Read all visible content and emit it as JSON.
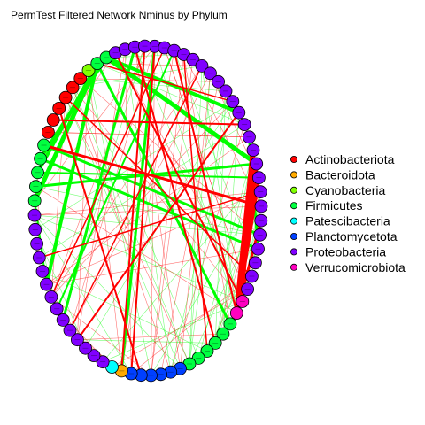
{
  "chart_data": {
    "type": "network",
    "title": "PermTest Filtered Network Nminus by Phylum",
    "layout": "circle",
    "node_count": 72,
    "legend_position": "right",
    "legend": [
      {
        "name": "Actinobacteriota",
        "color": "#ff0000"
      },
      {
        "name": "Bacteroidota",
        "color": "#ffaa00"
      },
      {
        "name": "Cyanobacteria",
        "color": "#80ff00"
      },
      {
        "name": "Firmicutes",
        "color": "#00ff40"
      },
      {
        "name": "Patescibacteria",
        "color": "#00ffff"
      },
      {
        "name": "Planctomycetota",
        "color": "#0040ff"
      },
      {
        "name": "Proteobacteria",
        "color": "#8000ff"
      },
      {
        "name": "Verrucomicrobiota",
        "color": "#ff00bf"
      }
    ],
    "nodes": [
      {
        "phylum": "Proteobacteria"
      },
      {
        "phylum": "Proteobacteria"
      },
      {
        "phylum": "Proteobacteria"
      },
      {
        "phylum": "Proteobacteria"
      },
      {
        "phylum": "Proteobacteria"
      },
      {
        "phylum": "Proteobacteria"
      },
      {
        "phylum": "Proteobacteria"
      },
      {
        "phylum": "Proteobacteria"
      },
      {
        "phylum": "Proteobacteria"
      },
      {
        "phylum": "Proteobacteria"
      },
      {
        "phylum": "Proteobacteria"
      },
      {
        "phylum": "Proteobacteria"
      },
      {
        "phylum": "Proteobacteria"
      },
      {
        "phylum": "Proteobacteria"
      },
      {
        "phylum": "Proteobacteria"
      },
      {
        "phylum": "Proteobacteria"
      },
      {
        "phylum": "Proteobacteria"
      },
      {
        "phylum": "Proteobacteria"
      },
      {
        "phylum": "Proteobacteria"
      },
      {
        "phylum": "Proteobacteria"
      },
      {
        "phylum": "Proteobacteria"
      },
      {
        "phylum": "Proteobacteria"
      },
      {
        "phylum": "Proteobacteria"
      },
      {
        "phylum": "Proteobacteria"
      },
      {
        "phylum": "Verrucomicrobiota"
      },
      {
        "phylum": "Verrucomicrobiota"
      },
      {
        "phylum": "Firmicutes"
      },
      {
        "phylum": "Firmicutes"
      },
      {
        "phylum": "Firmicutes"
      },
      {
        "phylum": "Firmicutes"
      },
      {
        "phylum": "Firmicutes"
      },
      {
        "phylum": "Firmicutes"
      },
      {
        "phylum": "Planctomycetota"
      },
      {
        "phylum": "Planctomycetota"
      },
      {
        "phylum": "Planctomycetota"
      },
      {
        "phylum": "Planctomycetota"
      },
      {
        "phylum": "Planctomycetota"
      },
      {
        "phylum": "Planctomycetota"
      },
      {
        "phylum": "Bacteroidota"
      },
      {
        "phylum": "Patescibacteria"
      },
      {
        "phylum": "Proteobacteria"
      },
      {
        "phylum": "Proteobacteria"
      },
      {
        "phylum": "Proteobacteria"
      },
      {
        "phylum": "Proteobacteria"
      },
      {
        "phylum": "Proteobacteria"
      },
      {
        "phylum": "Proteobacteria"
      },
      {
        "phylum": "Proteobacteria"
      },
      {
        "phylum": "Proteobacteria"
      },
      {
        "phylum": "Proteobacteria"
      },
      {
        "phylum": "Proteobacteria"
      },
      {
        "phylum": "Proteobacteria"
      },
      {
        "phylum": "Proteobacteria"
      },
      {
        "phylum": "Proteobacteria"
      },
      {
        "phylum": "Proteobacteria"
      },
      {
        "phylum": "Firmicutes"
      },
      {
        "phylum": "Firmicutes"
      },
      {
        "phylum": "Firmicutes"
      },
      {
        "phylum": "Firmicutes"
      },
      {
        "phylum": "Firmicutes"
      },
      {
        "phylum": "Actinobacteriota"
      },
      {
        "phylum": "Actinobacteriota"
      },
      {
        "phylum": "Actinobacteriota"
      },
      {
        "phylum": "Actinobacteriota"
      },
      {
        "phylum": "Actinobacteriota"
      },
      {
        "phylum": "Actinobacteriota"
      },
      {
        "phylum": "Cyanobacteria"
      },
      {
        "phylum": "Firmicutes"
      },
      {
        "phylum": "Firmicutes"
      },
      {
        "phylum": "Proteobacteria"
      },
      {
        "phylum": "Proteobacteria"
      },
      {
        "phylum": "Proteobacteria"
      },
      {
        "phylum": "Proteobacteria"
      }
    ],
    "edge_colors": {
      "positive": "#00ff00",
      "negative": "#ff0000"
    },
    "edges": [
      {
        "source": 67,
        "target": 14,
        "sign": "positive",
        "weight": 5
      },
      {
        "source": 66,
        "target": 54,
        "sign": "positive",
        "weight": 5
      },
      {
        "source": 66,
        "target": 48,
        "sign": "positive",
        "weight": 4
      },
      {
        "source": 67,
        "target": 57,
        "sign": "positive",
        "weight": 4
      },
      {
        "source": 66,
        "target": 56,
        "sign": "positive",
        "weight": 4
      },
      {
        "source": 67,
        "target": 10,
        "sign": "positive",
        "weight": 4
      },
      {
        "source": 66,
        "target": 26,
        "sign": "positive",
        "weight": 3
      },
      {
        "source": 58,
        "target": 19,
        "sign": "positive",
        "weight": 3
      },
      {
        "source": 57,
        "target": 20,
        "sign": "positive",
        "weight": 3
      },
      {
        "source": 70,
        "target": 45,
        "sign": "positive",
        "weight": 3
      },
      {
        "source": 0,
        "target": 38,
        "sign": "positive",
        "weight": 3
      },
      {
        "source": 55,
        "target": 14,
        "sign": "positive",
        "weight": 3
      },
      {
        "source": 12,
        "target": 20,
        "sign": "positive",
        "weight": 3
      },
      {
        "source": 2,
        "target": 46,
        "sign": "positive",
        "weight": 2
      },
      {
        "source": 56,
        "target": 15,
        "sign": "positive",
        "weight": 2
      },
      {
        "source": 54,
        "target": 48,
        "sign": "positive",
        "weight": 2
      },
      {
        "source": 13,
        "target": 25,
        "sign": "negative",
        "weight": 6
      },
      {
        "source": 14,
        "target": 25,
        "sign": "negative",
        "weight": 5
      },
      {
        "source": 15,
        "target": 25,
        "sign": "negative",
        "weight": 4
      },
      {
        "source": 18,
        "target": 25,
        "sign": "negative",
        "weight": 3
      },
      {
        "source": 13,
        "target": 24,
        "sign": "negative",
        "weight": 3
      },
      {
        "source": 58,
        "target": 17,
        "sign": "negative",
        "weight": 3
      },
      {
        "source": 67,
        "target": 68,
        "sign": "negative",
        "weight": 3
      },
      {
        "source": 68,
        "target": 24,
        "sign": "negative",
        "weight": 2
      },
      {
        "source": 2,
        "target": 25,
        "sign": "negative",
        "weight": 2
      },
      {
        "source": 60,
        "target": 11,
        "sign": "negative",
        "weight": 2
      },
      {
        "source": 61,
        "target": 36,
        "sign": "negative",
        "weight": 2
      },
      {
        "source": 10,
        "target": 43,
        "sign": "negative",
        "weight": 2
      },
      {
        "source": 71,
        "target": 38,
        "sign": "negative",
        "weight": 2
      },
      {
        "source": 70,
        "target": 28,
        "sign": "negative",
        "weight": 2
      },
      {
        "source": 0,
        "target": 37,
        "sign": "negative",
        "weight": 2
      },
      {
        "source": 1,
        "target": 47,
        "sign": "negative",
        "weight": 1.5
      },
      {
        "source": 5,
        "target": 44,
        "sign": "negative",
        "weight": 1.5
      },
      {
        "source": 16,
        "target": 50,
        "sign": "negative",
        "weight": 1.5
      },
      {
        "source": 66,
        "target": 9,
        "sign": "negative",
        "weight": 1.5
      },
      {
        "source": 62,
        "target": 22,
        "sign": "negative",
        "weight": 1.5
      },
      {
        "source": 29,
        "target": 3,
        "sign": "negative",
        "weight": 1.5
      }
    ]
  }
}
